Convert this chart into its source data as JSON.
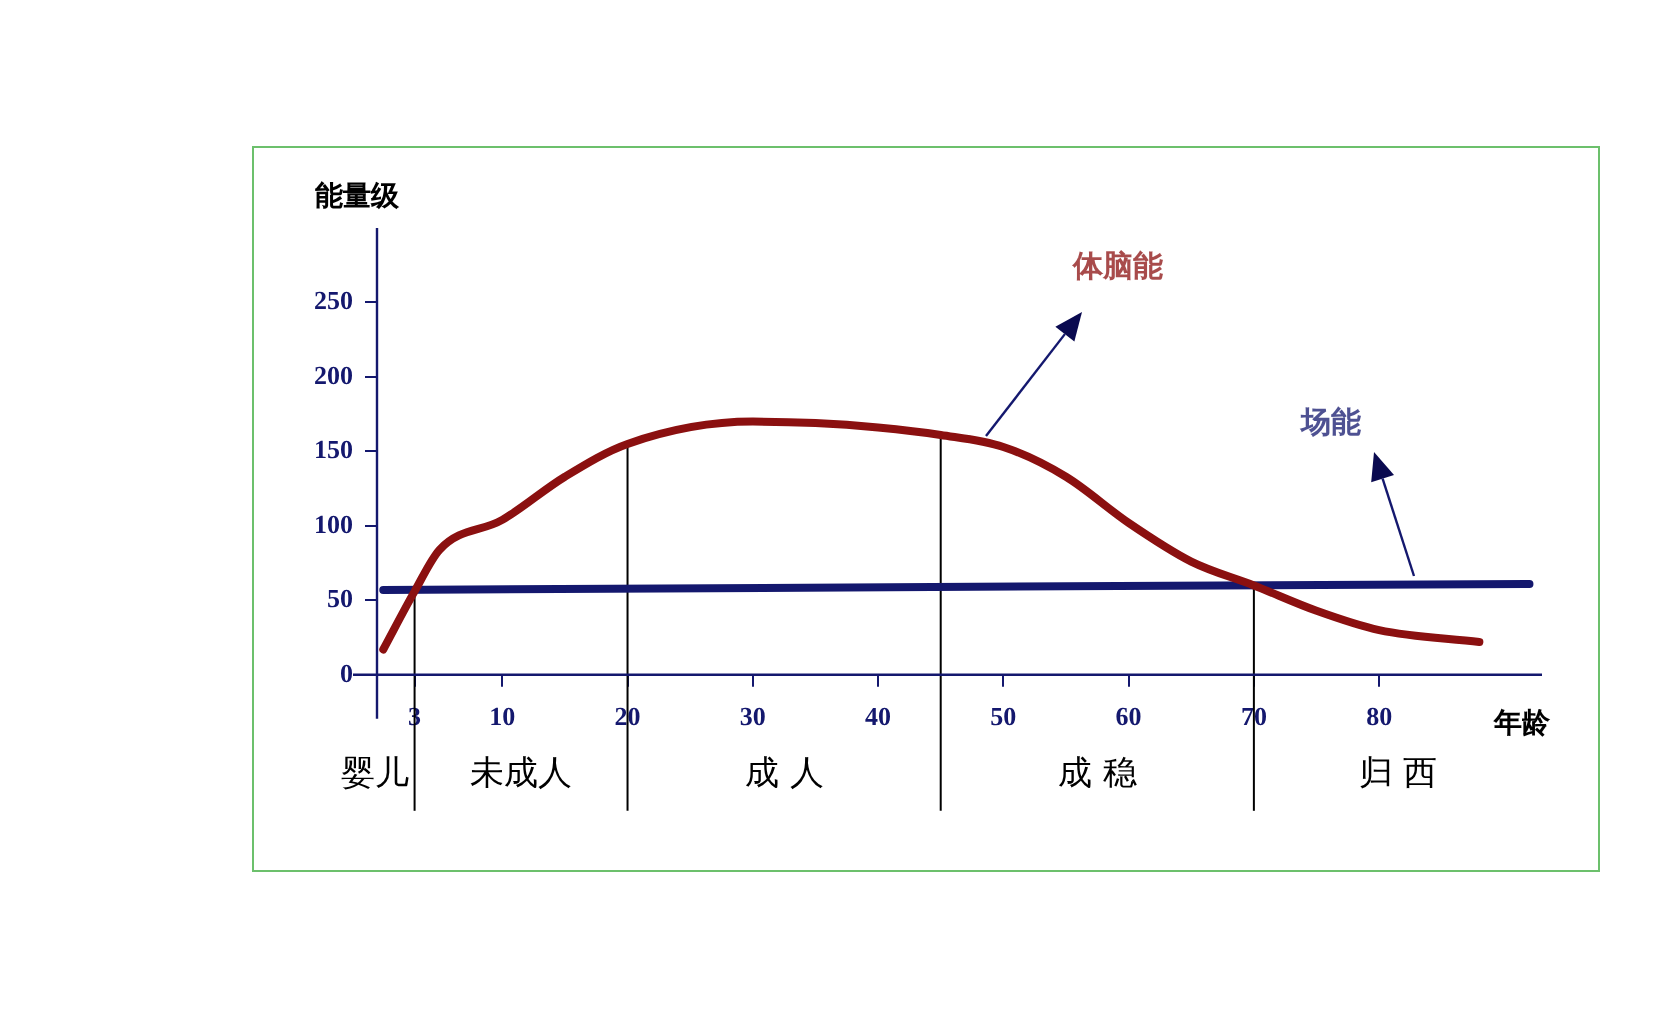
{
  "chart_data": {
    "type": "line",
    "xlabel": "年龄",
    "ylabel": "能量级",
    "xlim": [
      0,
      93
    ],
    "xticks": [
      3,
      10,
      20,
      30,
      40,
      50,
      60,
      70,
      80
    ],
    "ylim": [
      0,
      300
    ],
    "yticks": [
      0,
      50,
      100,
      150,
      200,
      250
    ],
    "grid": false,
    "legend": false,
    "marker": "none",
    "line_style": "solid",
    "series": [
      {
        "name": "体脑能",
        "color": "#8b1010",
        "x": [
          0.5,
          3,
          5,
          10,
          15,
          20,
          30,
          35,
          40,
          45,
          50,
          55,
          60,
          65,
          70,
          75,
          80,
          88
        ],
        "values": [
          17,
          56,
          84,
          104,
          133,
          155,
          170,
          169,
          166,
          161,
          153,
          133,
          102,
          76,
          60,
          43,
          30,
          22
        ]
      },
      {
        "name": "场能",
        "color": "#14186e",
        "x": [
          0.5,
          92
        ],
        "values": [
          57,
          61
        ]
      }
    ],
    "ref_lines": [
      {
        "axis": "x",
        "value": 3
      },
      {
        "axis": "x",
        "value": 20
      },
      {
        "axis": "x",
        "value": 45
      },
      {
        "axis": "x",
        "value": 70
      }
    ],
    "annotations": [
      "婴儿",
      "未成人",
      "成 人",
      "成 稳",
      "归 西"
    ]
  }
}
